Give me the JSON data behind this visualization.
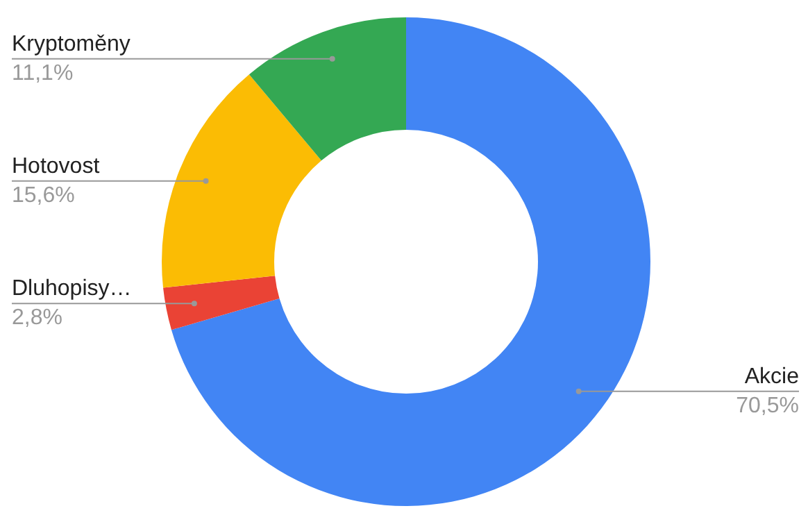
{
  "chart_data": {
    "type": "donut",
    "categories": [
      "Akcie",
      "Dluhopisy…",
      "Hotovost",
      "Kryptoměny"
    ],
    "values": [
      70.5,
      2.8,
      15.6,
      11.1
    ],
    "colors": [
      "#4285f4",
      "#ea4335",
      "#fbbc04",
      "#34a853"
    ],
    "value_labels": [
      "70,5%",
      "2,8%",
      "15,6%",
      "11,1%"
    ]
  }
}
